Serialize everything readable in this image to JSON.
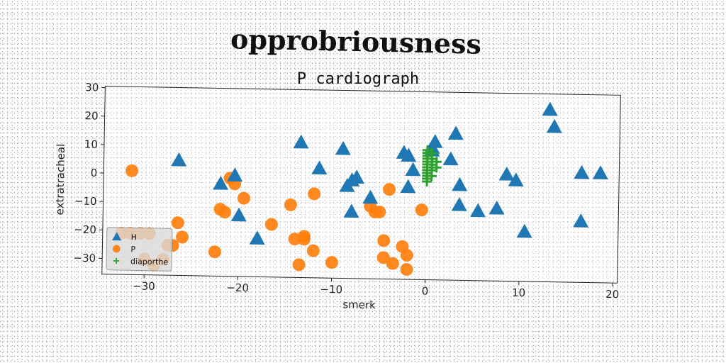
{
  "chart_data": {
    "type": "scatter",
    "suptitle": "opprobriousness",
    "title": "P cardiograph",
    "xlabel": "smerk",
    "ylabel": "extratracheal",
    "xlim": [
      -34.5,
      20.5
    ],
    "ylim": [
      -35.5,
      30.5
    ],
    "xticks": [
      -30,
      -20,
      -10,
      0,
      10,
      20
    ],
    "yticks": [
      -30,
      -20,
      -10,
      0,
      10,
      20,
      30
    ],
    "xtick_labels": [
      "−30",
      "−20",
      "−10",
      "0",
      "10",
      "20"
    ],
    "ytick_labels": [
      "−30",
      "−20",
      "−10",
      "0",
      "10",
      "20",
      "30"
    ],
    "grid": false,
    "legend_position": "lower-left",
    "series": [
      {
        "name": "H",
        "marker": "triangle",
        "color": "#1f77b4",
        "points": [
          [
            -26.5,
            5
          ],
          [
            -22,
            -3
          ],
          [
            -20.5,
            0
          ],
          [
            -20,
            -14
          ],
          [
            -18,
            -22
          ],
          [
            -13.5,
            12
          ],
          [
            -11.5,
            3
          ],
          [
            -9,
            10
          ],
          [
            -8.5,
            -3
          ],
          [
            -8,
            -1
          ],
          [
            -8,
            -12
          ],
          [
            -7.5,
            0
          ],
          [
            -6,
            -7
          ],
          [
            -2.5,
            9
          ],
          [
            -2,
            8
          ],
          [
            -2,
            -3
          ],
          [
            -1.5,
            3
          ],
          [
            0.5,
            11
          ],
          [
            0.5,
            10
          ],
          [
            0.8,
            13
          ],
          [
            2.5,
            7
          ],
          [
            3,
            16
          ],
          [
            3.5,
            -2
          ],
          [
            3.5,
            -9
          ],
          [
            5.5,
            -11
          ],
          [
            7.5,
            -10
          ],
          [
            8.5,
            2
          ],
          [
            9.5,
            0
          ],
          [
            10.5,
            -18
          ],
          [
            13,
            25
          ],
          [
            13.5,
            19
          ],
          [
            16.5,
            3
          ],
          [
            16.5,
            -14
          ],
          [
            18.5,
            3
          ]
        ]
      },
      {
        "name": "P",
        "marker": "circle",
        "color": "#ff7f0e",
        "points": [
          [
            -31.5,
            1
          ],
          [
            -32.5,
            -21
          ],
          [
            -31.5,
            -21
          ],
          [
            -30.5,
            -21
          ],
          [
            -29.5,
            -21
          ],
          [
            -30,
            -30
          ],
          [
            -29,
            -32
          ],
          [
            -28,
            -30
          ],
          [
            -27.5,
            -25
          ],
          [
            -27,
            -25
          ],
          [
            -26.5,
            -17
          ],
          [
            -26,
            -22
          ],
          [
            -22.5,
            -27
          ],
          [
            -22,
            -12
          ],
          [
            -21.5,
            -13
          ],
          [
            -21,
            -1
          ],
          [
            -20.5,
            -3
          ],
          [
            -19.5,
            -8
          ],
          [
            -16.5,
            -17
          ],
          [
            -14.5,
            -10
          ],
          [
            -14,
            -22
          ],
          [
            -13.5,
            -31
          ],
          [
            -13,
            -21
          ],
          [
            -13,
            -22
          ],
          [
            -12,
            -26
          ],
          [
            -12,
            -6
          ],
          [
            -10,
            -30
          ],
          [
            -6,
            -10
          ],
          [
            -5.5,
            -12
          ],
          [
            -5,
            -12
          ],
          [
            -4.5,
            -28
          ],
          [
            -4.5,
            -22
          ],
          [
            -4,
            -4
          ],
          [
            -3.5,
            -30
          ],
          [
            -2.5,
            -24
          ],
          [
            -2,
            -27
          ],
          [
            -2,
            -32
          ],
          [
            -0.5,
            -11
          ]
        ]
      },
      {
        "name": "diaporthe",
        "marker": "plus",
        "color": "#2ca02c",
        "points": [
          [
            0,
            0
          ],
          [
            0,
            1
          ],
          [
            0,
            2
          ],
          [
            0,
            3
          ],
          [
            0,
            4
          ],
          [
            0,
            5
          ],
          [
            0,
            6
          ],
          [
            0,
            7
          ],
          [
            0,
            8
          ],
          [
            0,
            9
          ],
          [
            0,
            10
          ],
          [
            0.5,
            1
          ],
          [
            0.5,
            3
          ],
          [
            0.5,
            5
          ],
          [
            0.5,
            7
          ],
          [
            0.5,
            9
          ],
          [
            1,
            4
          ],
          [
            1,
            6
          ],
          [
            0,
            -1
          ]
        ]
      }
    ]
  }
}
